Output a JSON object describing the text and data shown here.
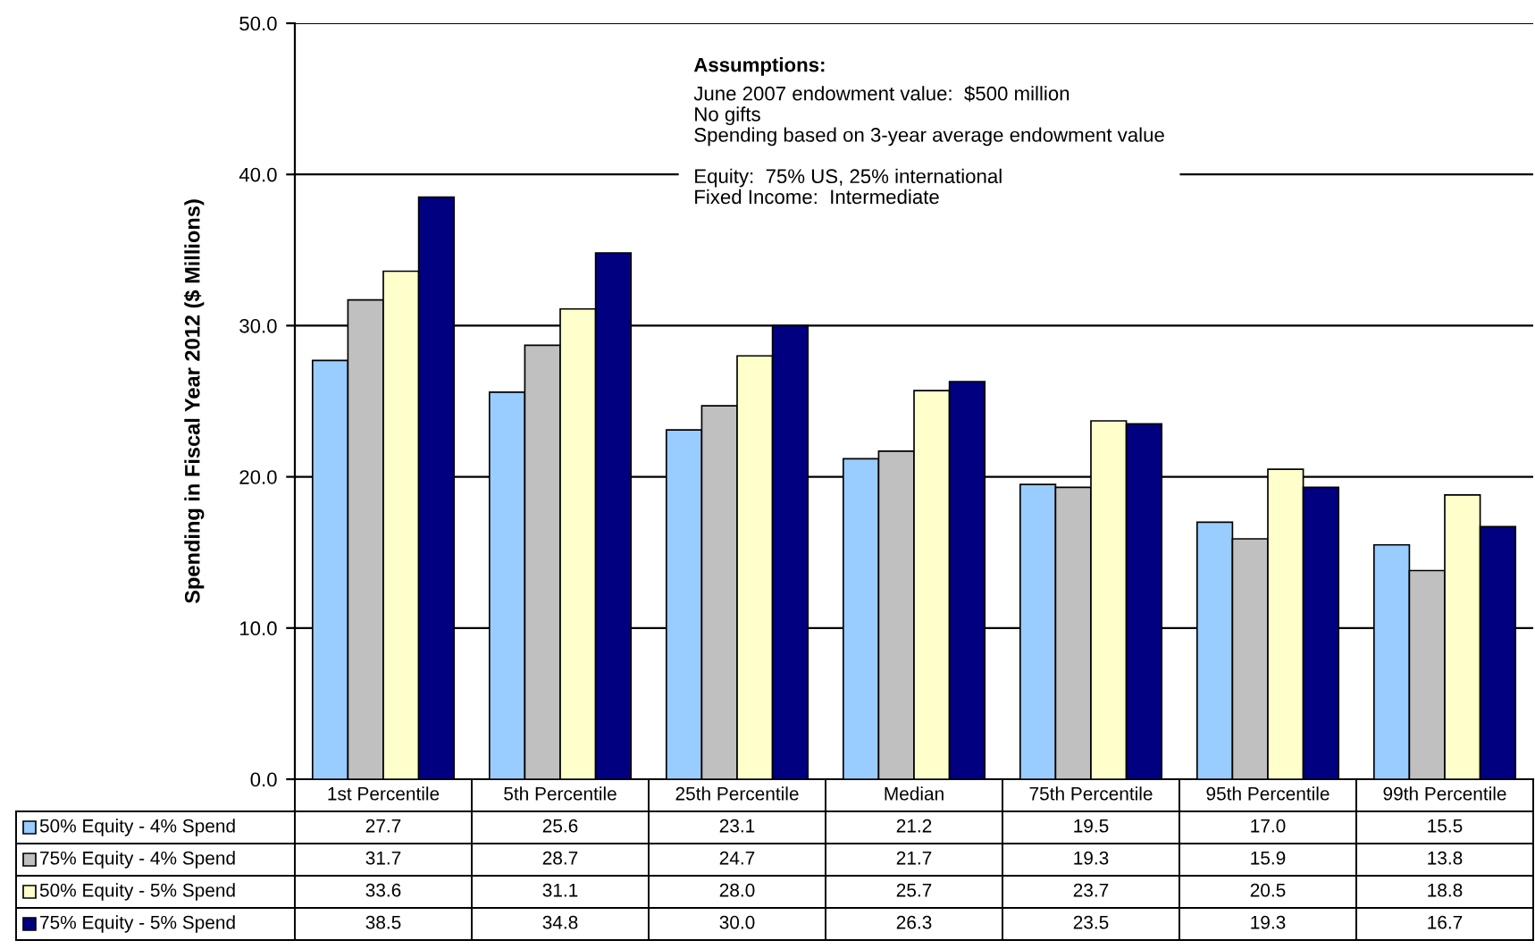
{
  "chart_data": {
    "type": "bar",
    "ylabel": "Spending in Fiscal Year 2012 ($ Millions)",
    "categories": [
      "1st Percentile",
      "5th Percentile",
      "25th Percentile",
      "Median",
      "75th Percentile",
      "95th Percentile",
      "99th Percentile"
    ],
    "series": [
      {
        "name": "50% Equity - 4% Spend",
        "color": "#99ccff",
        "values": [
          27.7,
          25.6,
          23.1,
          21.2,
          19.5,
          17.0,
          15.5
        ],
        "value_labels": [
          "27.7",
          "25.6",
          "23.1",
          "21.2",
          "19.5",
          "17.0",
          "15.5"
        ]
      },
      {
        "name": "75% Equity - 4% Spend",
        "color": "#c0c0c0",
        "values": [
          31.7,
          28.7,
          24.7,
          21.7,
          19.3,
          15.9,
          13.8
        ],
        "value_labels": [
          "31.7",
          "28.7",
          "24.7",
          "21.7",
          "19.3",
          "15.9",
          "13.8"
        ]
      },
      {
        "name": "50% Equity - 5% Spend",
        "color": "#ffffcc",
        "values": [
          33.6,
          31.1,
          28.0,
          25.7,
          23.7,
          20.5,
          18.8
        ],
        "value_labels": [
          "33.6",
          "31.1",
          "28.0",
          "25.7",
          "23.7",
          "20.5",
          "18.8"
        ]
      },
      {
        "name": "75% Equity - 5% Spend",
        "color": "#000080",
        "values": [
          38.5,
          34.8,
          30.0,
          26.3,
          23.5,
          19.3,
          16.7
        ],
        "value_labels": [
          "38.5",
          "34.8",
          "30.0",
          "26.3",
          "23.5",
          "19.3",
          "16.7"
        ]
      }
    ],
    "ylim": [
      0,
      50
    ],
    "yticks": [
      {
        "value": 0,
        "label": "0.0"
      },
      {
        "value": 10,
        "label": "10.0"
      },
      {
        "value": 20,
        "label": "20.0"
      },
      {
        "value": 30,
        "label": "30.0"
      },
      {
        "value": 40,
        "label": "40.0"
      },
      {
        "value": 50,
        "label": "50.0"
      }
    ],
    "grid": "y",
    "legend": "bottom",
    "annotations": [
      "Assumptions:",
      "June 2007 endowment value:  $500 million\nNo gifts\nSpending based on 3-year average endowment value\n\nEquity:  75% US, 25% international\nFixed Income:  Intermediate"
    ]
  }
}
